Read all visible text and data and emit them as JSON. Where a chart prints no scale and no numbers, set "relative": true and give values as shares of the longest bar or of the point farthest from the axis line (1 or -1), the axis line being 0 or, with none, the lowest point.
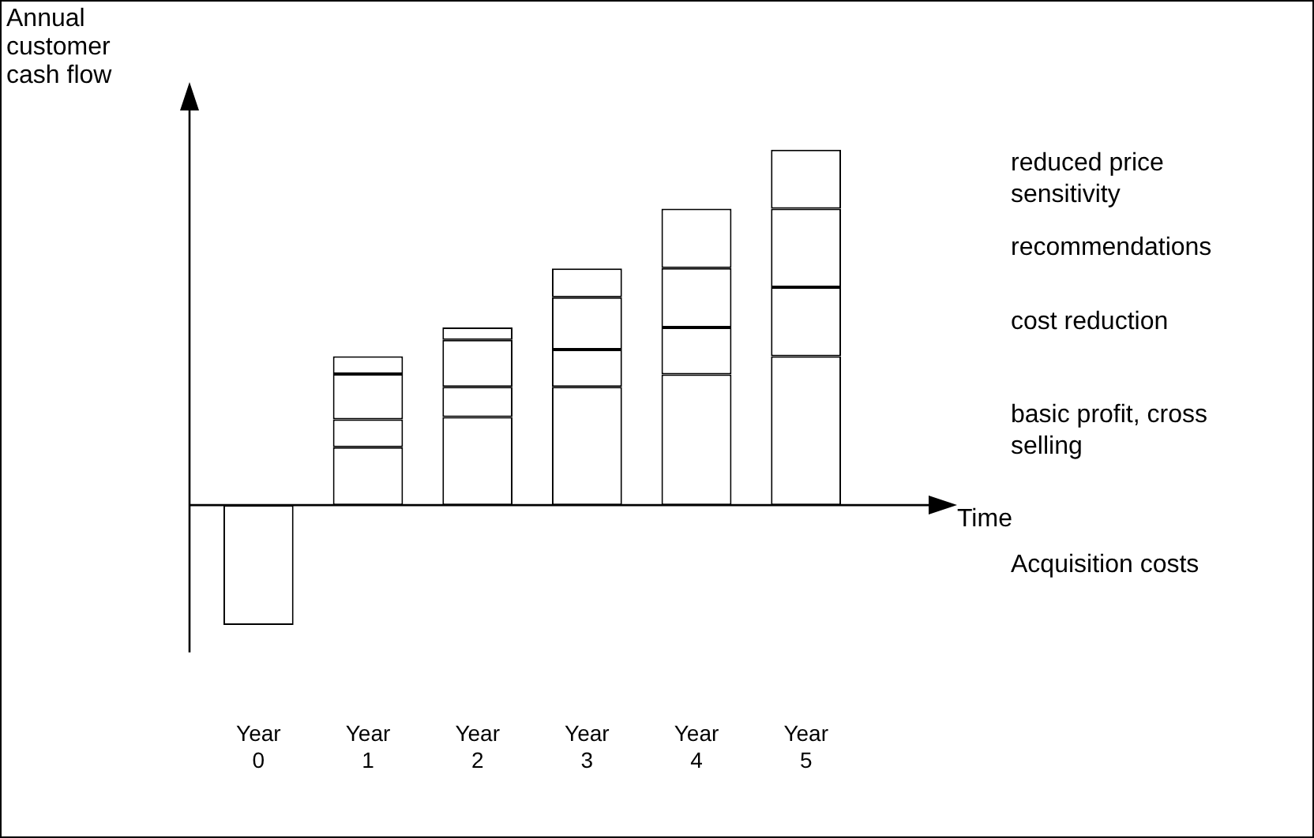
{
  "chart_data": {
    "type": "bar",
    "stacked": true,
    "relative": true,
    "legend": false,
    "grid": false,
    "xlabel": "Time",
    "ylabel": "Annual customer cash flow",
    "categories": [
      "Year 0",
      "Year 1",
      "Year 2",
      "Year 3",
      "Year 4",
      "Year 5"
    ],
    "series": [
      {
        "name": "Acquisition costs",
        "color": "#ffffff",
        "values": [
          -0.337,
          null,
          null,
          null,
          null,
          null
        ]
      },
      {
        "name": "basic profit, cross selling",
        "color": "#ffffff",
        "values": [
          null,
          0.163,
          0.248,
          0.333,
          0.368,
          0.419
        ]
      },
      {
        "name": "cost reduction",
        "color": "#ffffff",
        "values": [
          null,
          0.078,
          0.085,
          0.105,
          0.132,
          0.194
        ]
      },
      {
        "name": "recommendations",
        "color": "#ffffff",
        "values": [
          null,
          0.128,
          0.132,
          0.147,
          0.167,
          0.221
        ]
      },
      {
        "name": "reduced price sensitivity",
        "color": "#ffffff",
        "values": [
          null,
          0.05,
          0.035,
          0.081,
          0.167,
          0.166
        ]
      }
    ]
  }
}
